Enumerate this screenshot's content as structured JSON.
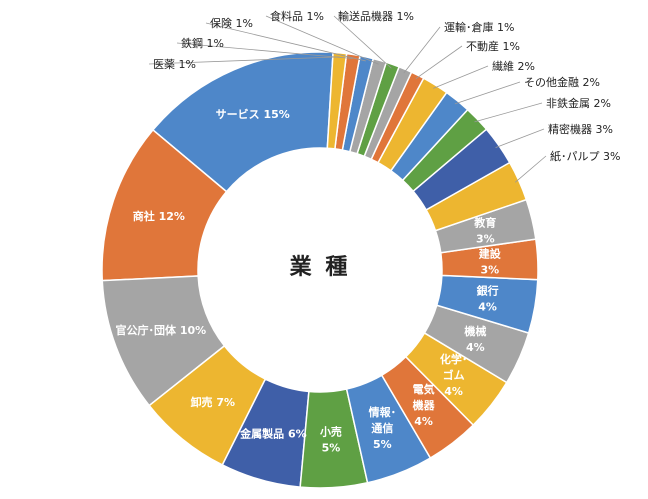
{
  "chart_data": {
    "type": "pie",
    "title": "業 種",
    "unit": "%",
    "slices": [
      {
        "label": "サービス",
        "value": 15,
        "color": "#4E87C9",
        "placement": "inside"
      },
      {
        "label": "商社",
        "value": 12,
        "color": "#E0763A",
        "placement": "inside"
      },
      {
        "label": "官公庁･団体",
        "value": 10,
        "color": "#A5A5A5",
        "placement": "inside"
      },
      {
        "label": "卸売",
        "value": 7,
        "color": "#EDB630",
        "placement": "inside"
      },
      {
        "label": "金属製品",
        "value": 6,
        "color": "#3F5FA8",
        "placement": "inside"
      },
      {
        "label": "小売",
        "value": 5,
        "color": "#5FA044",
        "placement": "inside"
      },
      {
        "label": "情報･通信",
        "value": 5,
        "color": "#4E87C9",
        "placement": "inside"
      },
      {
        "label": "電気機器",
        "value": 4,
        "color": "#E0763A",
        "placement": "inside"
      },
      {
        "label": "化学･ゴム",
        "value": 4,
        "color": "#EDB630",
        "placement": "inside"
      },
      {
        "label": "機械",
        "value": 4,
        "color": "#A5A5A5",
        "placement": "inside"
      },
      {
        "label": "銀行",
        "value": 4,
        "color": "#4E87C9",
        "placement": "inside"
      },
      {
        "label": "建設",
        "value": 3,
        "color": "#E0763A",
        "placement": "inside"
      },
      {
        "label": "教育",
        "value": 3,
        "color": "#A5A5A5",
        "placement": "inside"
      },
      {
        "label": "紙･パルプ",
        "value": 3,
        "color": "#EDB630",
        "placement": "outside"
      },
      {
        "label": "精密機器",
        "value": 3,
        "color": "#3F5FA8",
        "placement": "outside"
      },
      {
        "label": "非鉄金属",
        "value": 2,
        "color": "#5FA044",
        "placement": "outside"
      },
      {
        "label": "その他金融",
        "value": 2,
        "color": "#4E87C9",
        "placement": "outside"
      },
      {
        "label": "繊維",
        "value": 2,
        "color": "#EDB630",
        "placement": "outside"
      },
      {
        "label": "不動産",
        "value": 1,
        "color": "#E0763A",
        "placement": "outside"
      },
      {
        "label": "運輸･倉庫",
        "value": 1,
        "color": "#A5A5A5",
        "placement": "outside"
      },
      {
        "label": "輸送品機器",
        "value": 1,
        "color": "#5FA044",
        "placement": "outside"
      },
      {
        "label": "食料品",
        "value": 1,
        "color": "#A5A5A5",
        "placement": "outside"
      },
      {
        "label": "保険",
        "value": 1,
        "color": "#4E87C9",
        "placement": "outside"
      },
      {
        "label": "鉄鋼",
        "value": 1,
        "color": "#E0763A",
        "placement": "outside"
      },
      {
        "label": "医薬",
        "value": 1,
        "color": "#EDB630",
        "placement": "outside"
      }
    ]
  }
}
